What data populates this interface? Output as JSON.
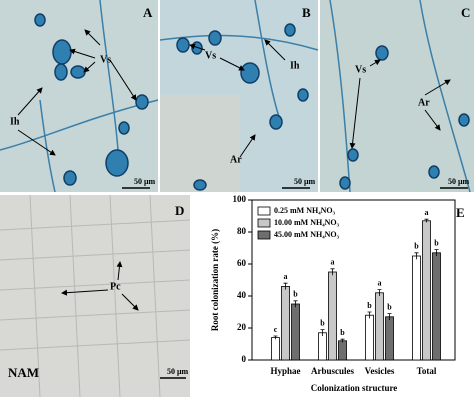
{
  "panels": [
    {
      "label": "A",
      "annotations": [
        "Vs",
        "Ih"
      ],
      "scale_bar": "50 μm"
    },
    {
      "label": "B",
      "annotations": [
        "Vs",
        "Ih",
        "Ar"
      ],
      "scale_bar": "50 μm"
    },
    {
      "label": "C",
      "annotations": [
        "Vs",
        "Ar"
      ],
      "scale_bar": "50 μm"
    },
    {
      "label": "D",
      "annotations": [
        "Pc"
      ],
      "treatment": "NAM",
      "scale_bar": "50 μm"
    }
  ],
  "chart_data": {
    "type": "bar",
    "panel_label": "E",
    "y_label": "Root colonization rate (%)",
    "x_label": "Colonization structure",
    "categories": [
      "Hyphae",
      "Arbuscules",
      "Vesicles",
      "Total"
    ],
    "series": [
      {
        "name": "0.25 mM NH₄NO₃",
        "color": "#ffffff",
        "values": [
          14,
          17,
          28,
          65
        ],
        "errors": [
          1,
          2,
          2,
          2
        ],
        "letters": [
          "c",
          "b",
          "b",
          "b"
        ]
      },
      {
        "name": "10.00 mM NH₄NO₃",
        "color": "#c8c8c8",
        "values": [
          46,
          55,
          42,
          87
        ],
        "errors": [
          2,
          2,
          2,
          1
        ],
        "letters": [
          "a",
          "a",
          "a",
          "a"
        ]
      },
      {
        "name": "45.00 mM NH₄NO₃",
        "color": "#6e6e6e",
        "values": [
          35,
          12,
          27,
          67
        ],
        "errors": [
          2,
          1,
          2,
          2
        ],
        "letters": [
          "b",
          "b",
          "b",
          "b"
        ]
      }
    ],
    "ylim": [
      0,
      100
    ],
    "yticks": [
      0,
      20,
      40,
      60,
      80,
      100
    ]
  }
}
